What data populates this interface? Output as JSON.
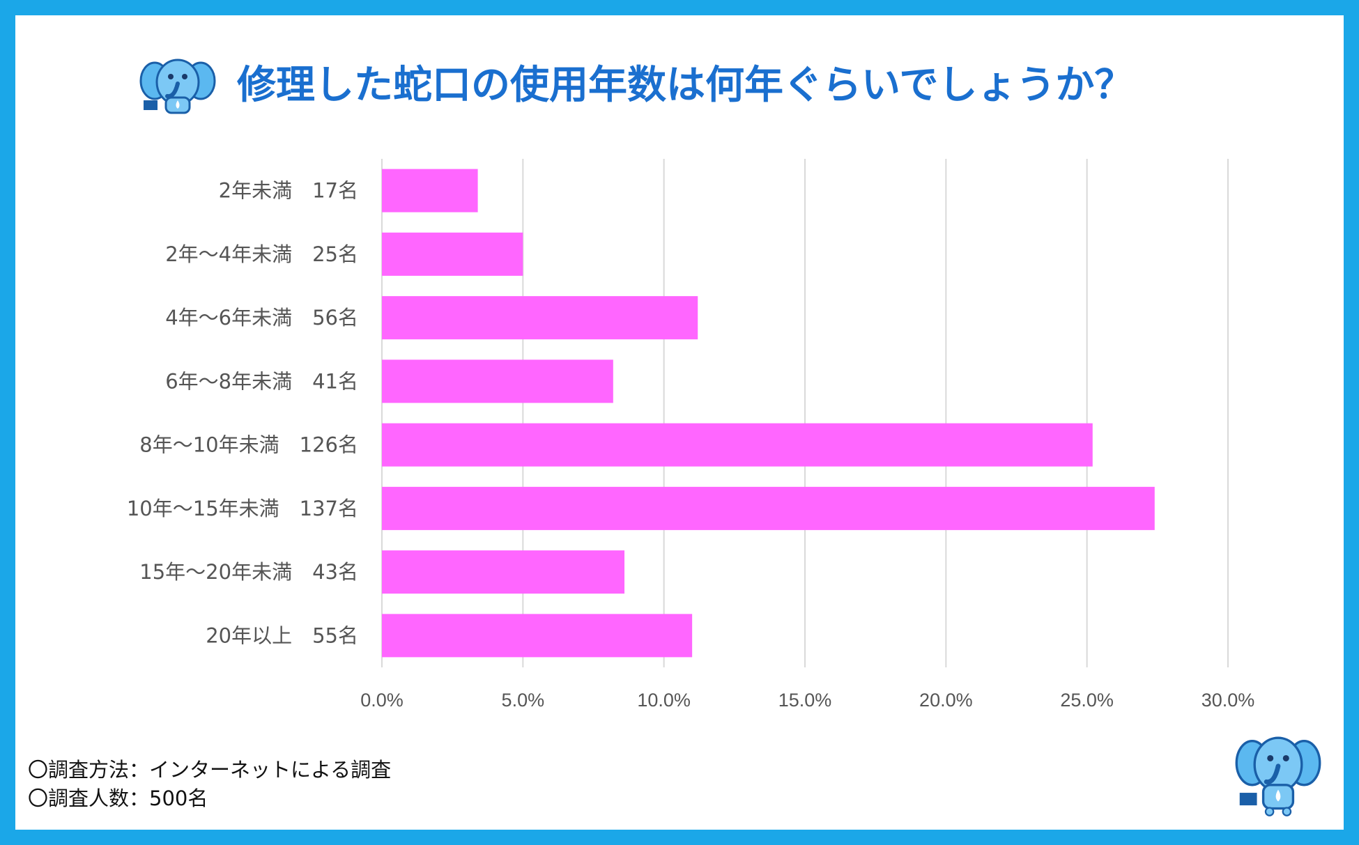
{
  "title": "修理した蛇口の使用年数は何年ぐらいでしょうか？",
  "colors": {
    "border": "#1ba7e8",
    "title": "#1a6fcf",
    "bar": "#ff66ff",
    "grid": "#d9d9d9",
    "text": "#555555"
  },
  "icons": {
    "mascot": "elephant-mascot-icon"
  },
  "chart_data": {
    "type": "bar",
    "orientation": "horizontal",
    "categories": [
      "2年未満　17名",
      "2年〜4年未満　25名",
      "4年〜6年未満　56名",
      "6年〜8年未満　41名",
      "8年〜10年未満　126名",
      "10年〜15年未満　137名",
      "15年〜20年未満　43名",
      "20年以上　55名"
    ],
    "values": [
      3.4,
      5.0,
      11.2,
      8.2,
      25.2,
      27.4,
      8.6,
      11.0
    ],
    "xlim": [
      0,
      30
    ],
    "xticks": [
      "0.0%",
      "5.0%",
      "10.0%",
      "15.0%",
      "20.0%",
      "25.0%",
      "30.0%"
    ],
    "grid": "vertical",
    "legend": "none"
  },
  "footnotes": {
    "method": "〇調査方法：インターネットによる調査",
    "respondents": "〇調査人数：500名"
  }
}
